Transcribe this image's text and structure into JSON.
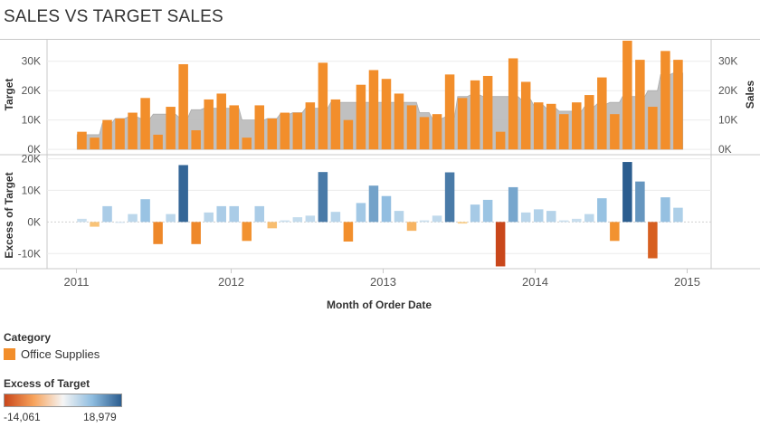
{
  "title": "SALES VS TARGET SALES",
  "legend": {
    "category_title": "Category",
    "category_item": "Office Supplies",
    "category_color": "#f28e2b",
    "excess_title": "Excess of Target",
    "excess_min": "-14,061",
    "excess_max": "18,979",
    "gradient_colors": [
      "#c9471b",
      "#f7a35c",
      "#f5f5f5",
      "#8fbde0",
      "#2b5d8f"
    ]
  },
  "chart_data": [
    {
      "type": "bar",
      "name": "sales-vs-target",
      "left_axis_label": "Target",
      "right_axis_label": "Sales",
      "y_ticks": [
        "0K",
        "10K",
        "20K",
        "30K"
      ],
      "ylim": [
        -1500,
        37000
      ],
      "x": [
        "2011-01",
        "2011-02",
        "2011-03",
        "2011-04",
        "2011-05",
        "2011-06",
        "2011-07",
        "2011-08",
        "2011-09",
        "2011-10",
        "2011-11",
        "2011-12",
        "2012-01",
        "2012-02",
        "2012-03",
        "2012-04",
        "2012-05",
        "2012-06",
        "2012-07",
        "2012-08",
        "2012-09",
        "2012-10",
        "2012-11",
        "2012-12",
        "2013-01",
        "2013-02",
        "2013-03",
        "2013-04",
        "2013-05",
        "2013-06",
        "2013-07",
        "2013-08",
        "2013-09",
        "2013-10",
        "2013-11",
        "2013-12",
        "2014-01",
        "2014-02",
        "2014-03",
        "2014-04",
        "2014-05",
        "2014-06",
        "2014-07",
        "2014-08",
        "2014-09",
        "2014-10",
        "2014-11",
        "2014-12"
      ],
      "sales": [
        6000,
        4000,
        10000,
        10500,
        12500,
        17500,
        5000,
        14500,
        29000,
        6500,
        17000,
        19000,
        15000,
        4000,
        15000,
        10500,
        12500,
        12500,
        16000,
        29500,
        17000,
        10000,
        22000,
        27000,
        24000,
        19000,
        15000,
        11000,
        12000,
        25500,
        17500,
        23500,
        25000,
        6000,
        31000,
        23000,
        16000,
        15500,
        12000,
        16000,
        18500,
        24500,
        12000,
        37000,
        30500,
        14500,
        33500,
        30500
      ],
      "target": [
        5000,
        5000,
        9000,
        10500,
        11000,
        10500,
        12000,
        12000,
        11000,
        13500,
        14000,
        14000,
        14000,
        10000,
        10000,
        10500,
        12000,
        12500,
        14000,
        14000,
        16000,
        16000,
        16000,
        16000,
        16000,
        16000,
        16000,
        12500,
        10500,
        11000,
        18000,
        18500,
        18000,
        18000,
        18000,
        17000,
        15000,
        14000,
        13000,
        13000,
        14500,
        15500,
        16000,
        18000,
        18000,
        20000,
        25500,
        26000
      ]
    },
    {
      "type": "bar",
      "name": "excess-of-target",
      "y_axis_label": "Excess of Target",
      "x_axis_label": "Month of Order Date",
      "x_ticks": [
        "2011",
        "2012",
        "2013",
        "2014",
        "2015"
      ],
      "y_ticks": [
        "-10K",
        "0K",
        "10K",
        "20K"
      ],
      "ylim": [
        -14500,
        21000
      ],
      "values": [
        1000,
        -1500,
        5000,
        0,
        2500,
        7200,
        -7000,
        2500,
        18000,
        -7000,
        3000,
        5000,
        5000,
        -6000,
        5000,
        -2000,
        500,
        1500,
        2000,
        15800,
        3200,
        -6200,
        6000,
        11500,
        8200,
        3500,
        -2800,
        500,
        2000,
        15700,
        -500,
        5500,
        7000,
        -14061,
        11000,
        3000,
        4000,
        3500,
        500,
        1000,
        2500,
        7500,
        -6000,
        18979,
        12800,
        -11500,
        7800,
        4500
      ],
      "color_range": [
        -14061,
        18979
      ]
    }
  ]
}
